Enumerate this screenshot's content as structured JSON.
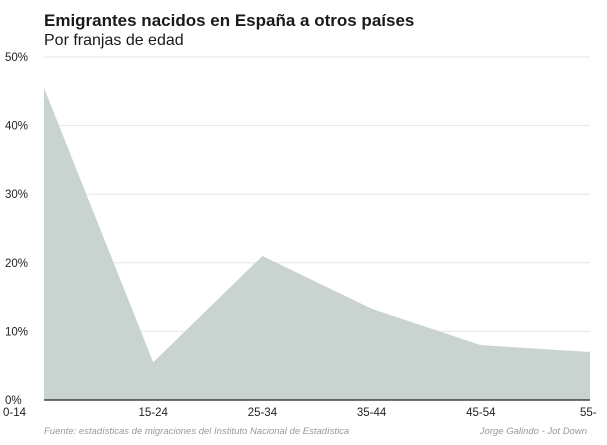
{
  "title": "Emigrantes nacidos en España a otros países",
  "subtitle": "Por franjas de edad",
  "source": "Fuente: estadísticas de migraciones del Instituto Nacional de Estadística",
  "credit": "Jorge Galindo - Jot Down",
  "chart_data": {
    "type": "area",
    "categories": [
      "0-14",
      "15-24",
      "25-34",
      "35-44",
      "45-54",
      "55-"
    ],
    "series": [
      {
        "values": [
          45.5,
          5.5,
          21.0,
          13.3,
          8.0,
          7.0
        ]
      }
    ],
    "yticks": [
      "0%",
      "10%",
      "20%",
      "30%",
      "40%",
      "50%"
    ],
    "ylim": [
      0,
      50
    ],
    "grid": true,
    "fill_color": "#c9d4d1"
  }
}
